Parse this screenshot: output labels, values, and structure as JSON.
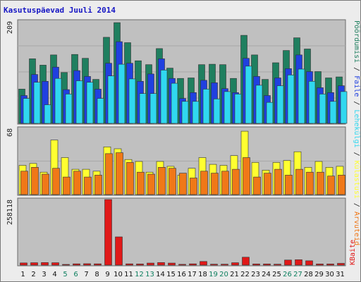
{
  "chart_data": {
    "title": "Kasutuspäevad Juuli 2014",
    "type": "bar",
    "categories": [
      "1",
      "2",
      "3",
      "4",
      "5",
      "6",
      "7",
      "8",
      "9",
      "10",
      "11",
      "12",
      "13",
      "14",
      "15",
      "16",
      "17",
      "18",
      "19",
      "20",
      "21",
      "22",
      "23",
      "24",
      "25",
      "26",
      "27",
      "28",
      "29",
      "30",
      "31"
    ],
    "weekend_days": [
      "5",
      "6",
      "12",
      "13",
      "19",
      "20",
      "26",
      "27"
    ],
    "panels": [
      {
        "id": "hits",
        "ymax_label": "209",
        "ylim": [
          0,
          209
        ],
        "series": [
          {
            "name": "Pöördumisi",
            "color": "#1f7f5f",
            "values": [
              70,
              132,
              119,
              140,
              104,
              141,
              133,
              90,
              176,
              206,
              165,
              128,
              120,
              153,
              113,
              92,
              93,
              120,
              121,
              120,
              92,
              180,
              140,
              90,
              124,
              149,
              175,
              152,
              106,
              93,
              95
            ]
          },
          {
            "name": "Faile",
            "color": "#2040e0",
            "values": [
              57,
              100,
              86,
              115,
              69,
              108,
              96,
              70,
              123,
              167,
              123,
              86,
              101,
              132,
              92,
              51,
              63,
              88,
              83,
              71,
              63,
              133,
              96,
              57,
              93,
              112,
              140,
              106,
              73,
              63,
              77
            ]
          },
          {
            "name": "Lehekülgi",
            "color": "#30d8f0",
            "values": [
              51,
              84,
              38,
              92,
              60,
              87,
              84,
              51,
              97,
              121,
              91,
              61,
              61,
              109,
              82,
              45,
              45,
              70,
              50,
              65,
              60,
              117,
              78,
              43,
              77,
              99,
              111,
              86,
              60,
              45,
              65
            ]
          }
        ]
      },
      {
        "id": "visits",
        "ymax_label": "68",
        "ylim": [
          0,
          68
        ],
        "series": [
          {
            "name": "Külastusi",
            "color": "#ffff30",
            "values": [
              30,
              32,
              23,
              56,
              38,
              26,
              26,
              24,
              49,
              47,
              36,
              34,
              23,
              34,
              29,
              20,
              27,
              38,
              31,
              30,
              40,
              65,
              33,
              25,
              33,
              35,
              44,
              28,
              34,
              28,
              29
            ]
          },
          {
            "name": "Arvuteid",
            "color": "#f07818",
            "values": [
              24,
              28,
              21,
              27,
              18,
              24,
              18,
              20,
              42,
              43,
              33,
              23,
              21,
              28,
              27,
              22,
              17,
              24,
              22,
              24,
              26,
              38,
              18,
              22,
              26,
              20,
              26,
              23,
              23,
              19,
              20
            ]
          }
        ]
      },
      {
        "id": "bytes",
        "ymax_label": "258118",
        "ylim": [
          0,
          258118
        ],
        "series": [
          {
            "name": "KBaite",
            "color": "#e01818",
            "values": [
              8500,
              9500,
              10000,
              9500,
              2500,
              5000,
              5500,
              5000,
              258118,
              111000,
              5000,
              4500,
              8000,
              10000,
              8000,
              3000,
              5000,
              14500,
              3500,
              3500,
              9500,
              31000,
              4500,
              4500,
              3500,
              20000,
              21000,
              17000,
              4500,
              4500,
              7000
            ]
          }
        ]
      }
    ],
    "legend_right": [
      {
        "text": "Pöördumisi",
        "color": "#1f7f5f"
      },
      {
        "text": " / ",
        "color": "#222222"
      },
      {
        "text": "Faile",
        "color": "#2040e0"
      },
      {
        "text": " / ",
        "color": "#222222"
      },
      {
        "text": "Lehekülgi",
        "color": "#30d8f0"
      },
      {
        "text": " / ",
        "color": "#222222"
      },
      {
        "text": "Külastusi",
        "color": "#ffff30"
      },
      {
        "text": " / ",
        "color": "#222222"
      },
      {
        "text": "Arvuteid",
        "color": "#f07818"
      }
    ],
    "legend_bytes": {
      "text": "KBaite",
      "color": "#e01818"
    },
    "colors": {
      "background": "#ececec",
      "panel": "#c0c0c0",
      "grid": "#a8a8a8",
      "weekday_tick": "#111111",
      "weekend_tick": "#108060"
    }
  }
}
